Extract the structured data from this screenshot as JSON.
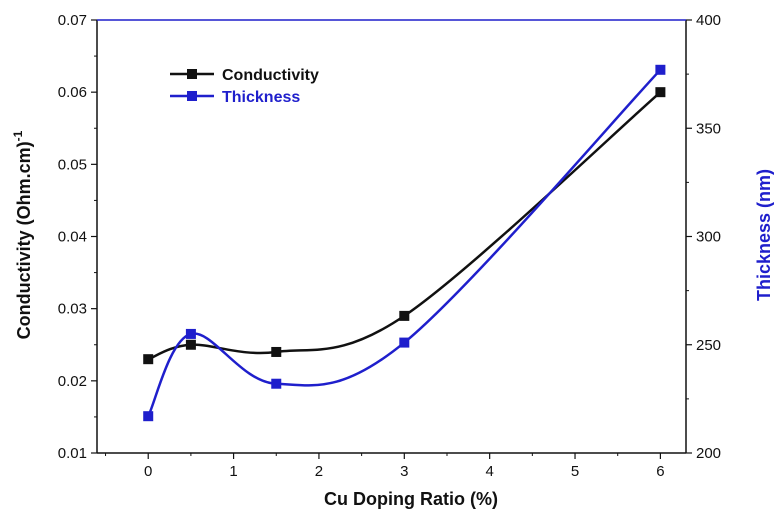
{
  "chart_data": {
    "type": "line",
    "title": "",
    "xlabel": "Cu Doping Ratio (%)",
    "ylabel": "Conductivity (Ohm.cm)",
    "ylabel_superscript": "-1",
    "y2label": "Thickness (nm)",
    "xlim": [
      -0.6,
      6.3
    ],
    "ylim": [
      0.01,
      0.07
    ],
    "y2lim": [
      200,
      400
    ],
    "xticks": [
      "0",
      "1",
      "2",
      "3",
      "4",
      "5",
      "6"
    ],
    "yticks": [
      "0.01",
      "0.02",
      "0.03",
      "0.04",
      "0.05",
      "0.06",
      "0.07"
    ],
    "y2ticks": [
      "200",
      "250",
      "300",
      "350",
      "400"
    ],
    "grid": false,
    "legend_position": "top-left",
    "series": [
      {
        "name": "Conductivity",
        "axis": "left",
        "color": "#111111",
        "x": [
          0,
          0.5,
          1.5,
          3,
          6
        ],
        "values": [
          0.023,
          0.025,
          0.024,
          0.029,
          0.06
        ]
      },
      {
        "name": "Thickness",
        "axis": "right",
        "color": "#1f1fcc",
        "x": [
          0,
          0.5,
          1.5,
          3,
          6
        ],
        "values": [
          217,
          255,
          232,
          251,
          377
        ]
      }
    ]
  }
}
